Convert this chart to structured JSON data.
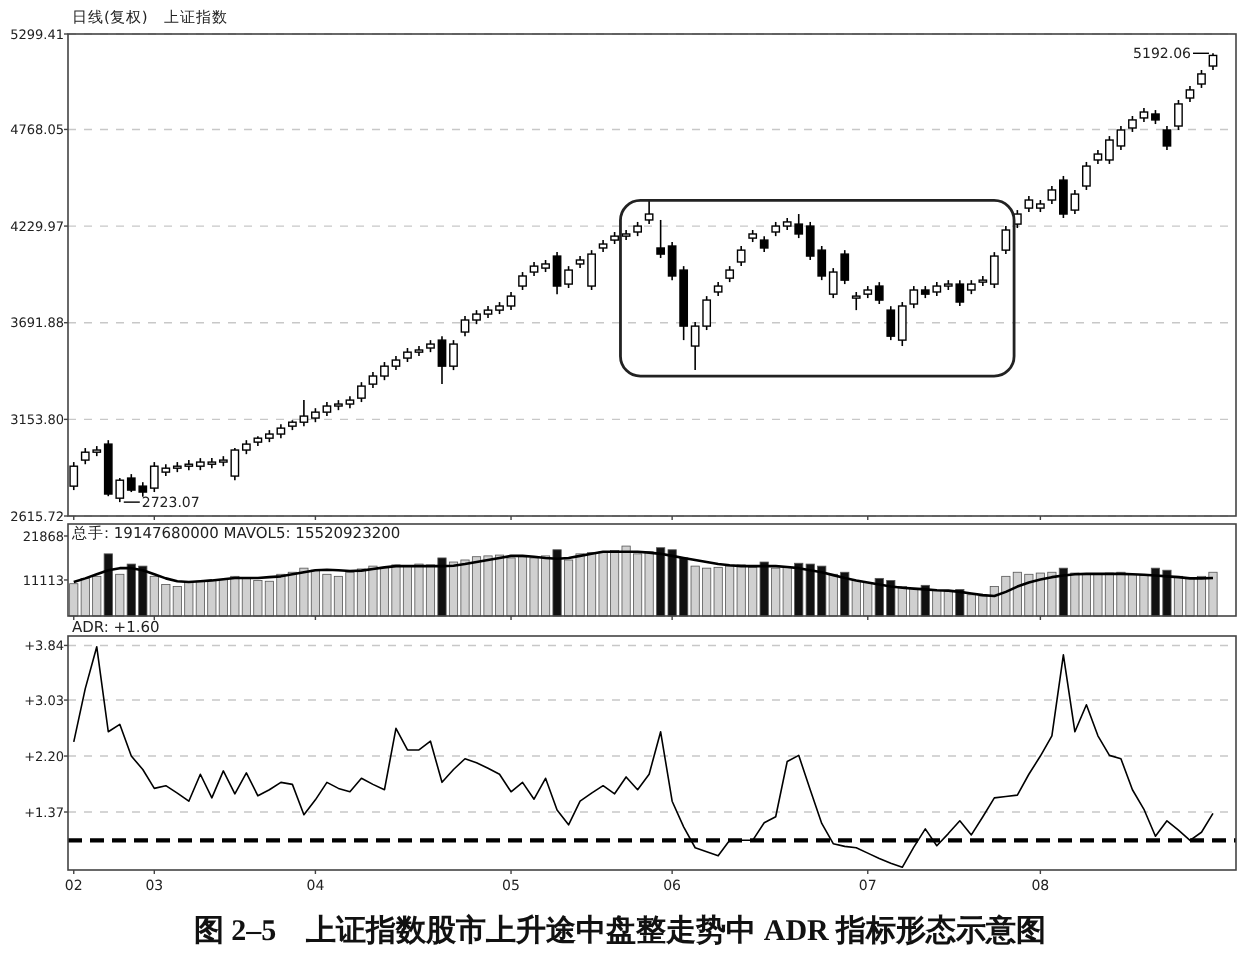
{
  "chart_data": [
    {
      "type": "candlestick",
      "title": "日线(复权)",
      "subtitle": "上证指数",
      "tick_labels": "y",
      "grid": "y",
      "ylim": [
        2615.72,
        5299.41
      ],
      "yticks": [
        5299.41,
        4768.05,
        4229.97,
        3691.88,
        {
          "value": 3153.8,
          "label": "3153.80"
        },
        2615.72
      ],
      "categories": [
        "02",
        null,
        null,
        null,
        null,
        null,
        null,
        "03",
        null,
        null,
        null,
        null,
        null,
        null,
        null,
        null,
        null,
        null,
        null,
        null,
        null,
        "04",
        null,
        null,
        null,
        null,
        null,
        null,
        null,
        null,
        null,
        null,
        null,
        null,
        null,
        null,
        null,
        null,
        "05",
        null,
        null,
        null,
        null,
        null,
        null,
        null,
        null,
        null,
        null,
        null,
        null,
        null,
        "06",
        null,
        null,
        null,
        null,
        null,
        null,
        null,
        null,
        null,
        null,
        null,
        null,
        null,
        null,
        null,
        null,
        "07",
        null,
        null,
        null,
        null,
        null,
        null,
        null,
        null,
        null,
        null,
        null,
        null,
        null,
        null,
        "08",
        null,
        null,
        null,
        null,
        null,
        null,
        null,
        null,
        null,
        null,
        null,
        null,
        null,
        null,
        null
      ],
      "ohlc": [
        [
          2782,
          2916,
          2760,
          2893
        ],
        [
          2927,
          2994,
          2904,
          2971
        ],
        [
          2971,
          3005,
          2949,
          2983
        ],
        [
          3016,
          3038,
          2726,
          2738
        ],
        [
          2715,
          2827,
          2693,
          2815
        ],
        [
          2827,
          2849,
          2749,
          2760
        ],
        [
          2782,
          2804,
          2723.07,
          2749
        ],
        [
          2771,
          2916,
          2749,
          2893
        ],
        [
          2860,
          2904,
          2838,
          2882
        ],
        [
          2882,
          2916,
          2860,
          2893
        ],
        [
          2893,
          2927,
          2871,
          2904
        ],
        [
          2893,
          2938,
          2871,
          2916
        ],
        [
          2904,
          2938,
          2882,
          2916
        ],
        [
          2916,
          2949,
          2893,
          2927
        ],
        [
          2838,
          2994,
          2815,
          2983
        ],
        [
          2983,
          3038,
          2960,
          3016
        ],
        [
          3027,
          3060,
          3005,
          3049
        ],
        [
          3049,
          3094,
          3027,
          3072
        ],
        [
          3072,
          3127,
          3049,
          3105
        ],
        [
          3116,
          3149,
          3094,
          3138
        ],
        [
          3138,
          3261,
          3116,
          3172
        ],
        [
          3161,
          3216,
          3138,
          3194
        ],
        [
          3194,
          3250,
          3172,
          3228
        ],
        [
          3228,
          3261,
          3205,
          3239
        ],
        [
          3239,
          3283,
          3216,
          3261
        ],
        [
          3272,
          3361,
          3250,
          3339
        ],
        [
          3350,
          3417,
          3328,
          3395
        ],
        [
          3395,
          3473,
          3372,
          3450
        ],
        [
          3450,
          3506,
          3428,
          3484
        ],
        [
          3495,
          3551,
          3473,
          3528
        ],
        [
          3528,
          3562,
          3506,
          3540
        ],
        [
          3551,
          3595,
          3528,
          3573
        ],
        [
          3595,
          3617,
          3350,
          3450
        ],
        [
          3450,
          3595,
          3428,
          3573
        ],
        [
          3640,
          3729,
          3617,
          3707
        ],
        [
          3707,
          3762,
          3684,
          3740
        ],
        [
          3740,
          3785,
          3718,
          3762
        ],
        [
          3762,
          3807,
          3740,
          3785
        ],
        [
          3785,
          3863,
          3762,
          3840
        ],
        [
          3896,
          3974,
          3874,
          3952
        ],
        [
          3974,
          4030,
          3952,
          4007
        ],
        [
          3996,
          4041,
          3974,
          4019
        ],
        [
          4063,
          4085,
          3851,
          3896
        ],
        [
          3907,
          4007,
          3885,
          3985
        ],
        [
          4019,
          4063,
          3996,
          4041
        ],
        [
          3896,
          4096,
          3874,
          4074
        ],
        [
          4108,
          4152,
          4085,
          4130
        ],
        [
          4152,
          4197,
          4130,
          4174
        ],
        [
          4174,
          4208,
          4152,
          4186
        ],
        [
          4197,
          4253,
          4174,
          4230
        ],
        [
          4264,
          4375,
          4241,
          4297
        ],
        [
          4108,
          4264,
          4052,
          4074
        ],
        [
          4119,
          4141,
          3929,
          3952
        ],
        [
          3985,
          4007,
          3595,
          3673
        ],
        [
          3562,
          3696,
          3428,
          3673
        ],
        [
          3673,
          3840,
          3651,
          3818
        ],
        [
          3863,
          3918,
          3840,
          3896
        ],
        [
          3940,
          4007,
          3918,
          3985
        ],
        [
          4030,
          4119,
          4007,
          4096
        ],
        [
          4163,
          4208,
          4141,
          4186
        ],
        [
          4152,
          4174,
          4085,
          4108
        ],
        [
          4197,
          4253,
          4174,
          4230
        ],
        [
          4230,
          4275,
          4208,
          4253
        ],
        [
          4241,
          4297,
          4163,
          4186
        ],
        [
          4230,
          4253,
          4041,
          4063
        ],
        [
          4096,
          4119,
          3929,
          3952
        ],
        [
          3851,
          3996,
          3829,
          3974
        ],
        [
          4074,
          4096,
          3907,
          3929
        ],
        [
          3829,
          3863,
          3762,
          3840
        ],
        [
          3851,
          3896,
          3829,
          3874
        ],
        [
          3896,
          3918,
          3796,
          3818
        ],
        [
          3762,
          3784,
          3595,
          3617
        ],
        [
          3595,
          3807,
          3562,
          3785
        ],
        [
          3796,
          3896,
          3773,
          3874
        ],
        [
          3874,
          3896,
          3829,
          3851
        ],
        [
          3863,
          3918,
          3840,
          3896
        ],
        [
          3896,
          3929,
          3874,
          3907
        ],
        [
          3907,
          3929,
          3785,
          3807
        ],
        [
          3874,
          3929,
          3851,
          3907
        ],
        [
          3918,
          3952,
          3896,
          3929
        ],
        [
          3907,
          4085,
          3885,
          4063
        ],
        [
          4096,
          4230,
          4074,
          4208
        ],
        [
          4241,
          4319,
          4219,
          4297
        ],
        [
          4330,
          4397,
          4308,
          4375
        ],
        [
          4330,
          4375,
          4308,
          4353
        ],
        [
          4375,
          4453,
          4353,
          4431
        ],
        [
          4486,
          4509,
          4275,
          4297
        ],
        [
          4319,
          4431,
          4297,
          4408
        ],
        [
          4453,
          4587,
          4431,
          4564
        ],
        [
          4598,
          4654,
          4576,
          4631
        ],
        [
          4598,
          4731,
          4576,
          4709
        ],
        [
          4676,
          4787,
          4654,
          4765
        ],
        [
          4776,
          4843,
          4754,
          4821
        ],
        [
          4832,
          4888,
          4810,
          4865
        ],
        [
          4854,
          4876,
          4798,
          4821
        ],
        [
          4765,
          4787,
          4654,
          4676
        ],
        [
          4787,
          4932,
          4765,
          4910
        ],
        [
          4943,
          5010,
          4921,
          4988
        ],
        [
          5021,
          5099,
          4999,
          5077
        ],
        [
          5121,
          5192.06,
          5099,
          5180
        ]
      ],
      "annotations": [
        "2723.07",
        "5192.06"
      ]
    },
    {
      "type": "bar",
      "title": "总手: 19147680000 MAVOL5: 15520923200",
      "tick_labels": "y",
      "ylim": [
        2300,
        24800
      ],
      "yticks": [
        21868,
        11113
      ],
      "categories": [
        "02",
        null,
        null,
        null,
        null,
        null,
        null,
        "03",
        null,
        null,
        null,
        null,
        null,
        null,
        null,
        null,
        null,
        null,
        null,
        null,
        null,
        "04",
        null,
        null,
        null,
        null,
        null,
        null,
        null,
        null,
        null,
        null,
        null,
        null,
        null,
        null,
        null,
        null,
        "05",
        null,
        null,
        null,
        null,
        null,
        null,
        null,
        null,
        null,
        null,
        null,
        null,
        null,
        "06",
        null,
        null,
        null,
        null,
        null,
        null,
        null,
        null,
        null,
        null,
        null,
        null,
        null,
        null,
        null,
        null,
        "07",
        null,
        null,
        null,
        null,
        null,
        null,
        null,
        null,
        null,
        null,
        null,
        null,
        null,
        null,
        "08",
        null,
        null,
        null,
        null,
        null,
        null,
        null,
        null,
        null,
        null,
        null,
        null,
        null,
        null,
        null
      ],
      "series": [
        {
          "type": "bar",
          "values": [
            10200,
            11500,
            12000,
            17500,
            12500,
            15000,
            14500,
            12000,
            10000,
            9500,
            10500,
            10800,
            11000,
            11200,
            12000,
            11500,
            11000,
            10800,
            12500,
            13000,
            14000,
            13500,
            12500,
            12000,
            13000,
            13800,
            14500,
            14200,
            14800,
            14500,
            15000,
            14800,
            16500,
            15500,
            16000,
            16800,
            17000,
            17200,
            16500,
            16800,
            16500,
            17000,
            18500,
            16000,
            17500,
            17800,
            18000,
            18300,
            19400,
            17500,
            18000,
            19000,
            18500,
            16500,
            14500,
            14000,
            14200,
            14500,
            14800,
            14200,
            15500,
            14000,
            14200,
            15200,
            15000,
            14500,
            12500,
            13000,
            11000,
            10500,
            11500,
            11000,
            9500,
            9000,
            9800,
            8500,
            8300,
            8800,
            7500,
            7200,
            9500,
            12000,
            13000,
            12500,
            12800,
            13000,
            14000,
            12800,
            12500,
            12600,
            12800,
            13000,
            12500,
            12200,
            14000,
            13500,
            12000,
            11500,
            12000,
            13000
          ],
          "colors": [
            "#d0d0d0",
            "#d0d0d0",
            "#d0d0d0",
            "#111111",
            "#d0d0d0",
            "#111111",
            "#111111",
            "#d0d0d0",
            "#d0d0d0",
            "#d0d0d0",
            "#d0d0d0",
            "#d0d0d0",
            "#d0d0d0",
            "#d0d0d0",
            "#d0d0d0",
            "#d0d0d0",
            "#d0d0d0",
            "#d0d0d0",
            "#d0d0d0",
            "#d0d0d0",
            "#d0d0d0",
            "#d0d0d0",
            "#d0d0d0",
            "#d0d0d0",
            "#d0d0d0",
            "#d0d0d0",
            "#d0d0d0",
            "#d0d0d0",
            "#d0d0d0",
            "#d0d0d0",
            "#d0d0d0",
            "#d0d0d0",
            "#111111",
            "#d0d0d0",
            "#d0d0d0",
            "#d0d0d0",
            "#d0d0d0",
            "#d0d0d0",
            "#d0d0d0",
            "#d0d0d0",
            "#d0d0d0",
            "#d0d0d0",
            "#111111",
            "#d0d0d0",
            "#d0d0d0",
            "#d0d0d0",
            "#d0d0d0",
            "#d0d0d0",
            "#d0d0d0",
            "#d0d0d0",
            "#d0d0d0",
            "#111111",
            "#111111",
            "#111111",
            "#d0d0d0",
            "#d0d0d0",
            "#d0d0d0",
            "#d0d0d0",
            "#d0d0d0",
            "#d0d0d0",
            "#111111",
            "#d0d0d0",
            "#d0d0d0",
            "#111111",
            "#111111",
            "#111111",
            "#d0d0d0",
            "#111111",
            "#d0d0d0",
            "#d0d0d0",
            "#111111",
            "#111111",
            "#d0d0d0",
            "#d0d0d0",
            "#111111",
            "#d0d0d0",
            "#d0d0d0",
            "#111111",
            "#d0d0d0",
            "#d0d0d0",
            "#d0d0d0",
            "#d0d0d0",
            "#d0d0d0",
            "#d0d0d0",
            "#d0d0d0",
            "#d0d0d0",
            "#111111",
            "#d0d0d0",
            "#d0d0d0",
            "#d0d0d0",
            "#d0d0d0",
            "#d0d0d0",
            "#d0d0d0",
            "#d0d0d0",
            "#111111",
            "#111111",
            "#d0d0d0",
            "#d0d0d0",
            "#d0d0d0",
            "#d0d0d0"
          ]
        },
        {
          "type": "line",
          "color": "#000000",
          "values": [
            10600,
            11500,
            12500,
            13500,
            14000,
            14000,
            13500,
            12500,
            11500,
            10800,
            10600,
            10800,
            11000,
            11300,
            11600,
            11600,
            11600,
            11800,
            12000,
            12500,
            13000,
            13500,
            13600,
            13500,
            13300,
            13400,
            13800,
            14200,
            14500,
            14500,
            14500,
            14500,
            14500,
            14600,
            15000,
            15500,
            16000,
            16500,
            17000,
            17000,
            16800,
            16500,
            16300,
            16500,
            17000,
            17500,
            18000,
            18000,
            18000,
            18000,
            17800,
            17500,
            17000,
            16500,
            16000,
            15500,
            15000,
            14700,
            14500,
            14500,
            14500,
            14500,
            14300,
            14000,
            13500,
            13000,
            12300,
            11600,
            11000,
            10500,
            10000,
            9500,
            9200,
            9000,
            8800,
            8600,
            8500,
            8200,
            7800,
            7400,
            7200,
            8200,
            9500,
            10500,
            11200,
            11800,
            12200,
            12500,
            12600,
            12600,
            12600,
            12600,
            12500,
            12400,
            12200,
            12000,
            11800,
            11500,
            11500,
            11600
          ]
        }
      ]
    },
    {
      "type": "line",
      "title": "ADR: +1.60",
      "grid": "y",
      "ylim": [
        0.51,
        3.98
      ],
      "yticks": [
        {
          "value": 3.84,
          "label": "+3.84"
        },
        {
          "value": 3.03,
          "label": "+3.03"
        },
        {
          "value": 2.2,
          "label": "+2.20"
        },
        {
          "value": 1.37,
          "label": "+1.37"
        }
      ],
      "categories": [
        "02",
        null,
        null,
        null,
        null,
        null,
        null,
        "03",
        null,
        null,
        null,
        null,
        null,
        null,
        null,
        null,
        null,
        null,
        null,
        null,
        null,
        "04",
        null,
        null,
        null,
        null,
        null,
        null,
        null,
        null,
        null,
        null,
        null,
        null,
        null,
        null,
        null,
        null,
        "05",
        null,
        null,
        null,
        null,
        null,
        null,
        null,
        null,
        null,
        null,
        null,
        null,
        null,
        "06",
        null,
        null,
        null,
        null,
        null,
        null,
        null,
        null,
        null,
        null,
        null,
        null,
        null,
        null,
        null,
        null,
        "07",
        null,
        null,
        null,
        null,
        null,
        null,
        null,
        null,
        null,
        null,
        null,
        null,
        null,
        null,
        "08",
        null,
        null,
        null,
        null,
        null,
        null,
        null,
        null,
        null,
        null,
        null,
        null,
        null,
        null,
        null
      ],
      "ref_lines": [
        {
          "axis": "y",
          "value": 0.95,
          "color": "#000000",
          "line_style": "dashed"
        }
      ],
      "series": [
        {
          "color": "#000000",
          "values": [
            2.41,
            3.2,
            3.82,
            2.56,
            2.67,
            2.2,
            2.0,
            1.72,
            1.76,
            1.65,
            1.53,
            1.93,
            1.58,
            1.98,
            1.64,
            1.95,
            1.61,
            1.7,
            1.81,
            1.78,
            1.33,
            1.55,
            1.81,
            1.72,
            1.67,
            1.87,
            1.78,
            1.7,
            2.61,
            2.29,
            2.29,
            2.42,
            1.81,
            2.0,
            2.16,
            2.1,
            2.02,
            1.93,
            1.67,
            1.81,
            1.56,
            1.87,
            1.4,
            1.18,
            1.53,
            1.65,
            1.76,
            1.64,
            1.89,
            1.7,
            1.93,
            2.56,
            1.53,
            1.15,
            0.84,
            0.78,
            0.72,
            0.95,
            0.95,
            0.95,
            1.21,
            1.3,
            2.12,
            2.21,
            1.7,
            1.2,
            0.9,
            0.86,
            0.84,
            0.76,
            0.68,
            0.61,
            0.55,
            0.85,
            1.12,
            0.87,
            1.05,
            1.24,
            1.03,
            1.3,
            1.58,
            1.6,
            1.62,
            1.93,
            2.2,
            2.5,
            3.7,
            2.56,
            2.96,
            2.5,
            2.21,
            2.16,
            1.7,
            1.41,
            1.01,
            1.24,
            1.1,
            0.95,
            1.07,
            1.35
          ]
        }
      ],
      "annotations": [
        "图 2–5　上证指数股市上升途中盘整走势中 ADR 指标形态示意图"
      ]
    }
  ]
}
